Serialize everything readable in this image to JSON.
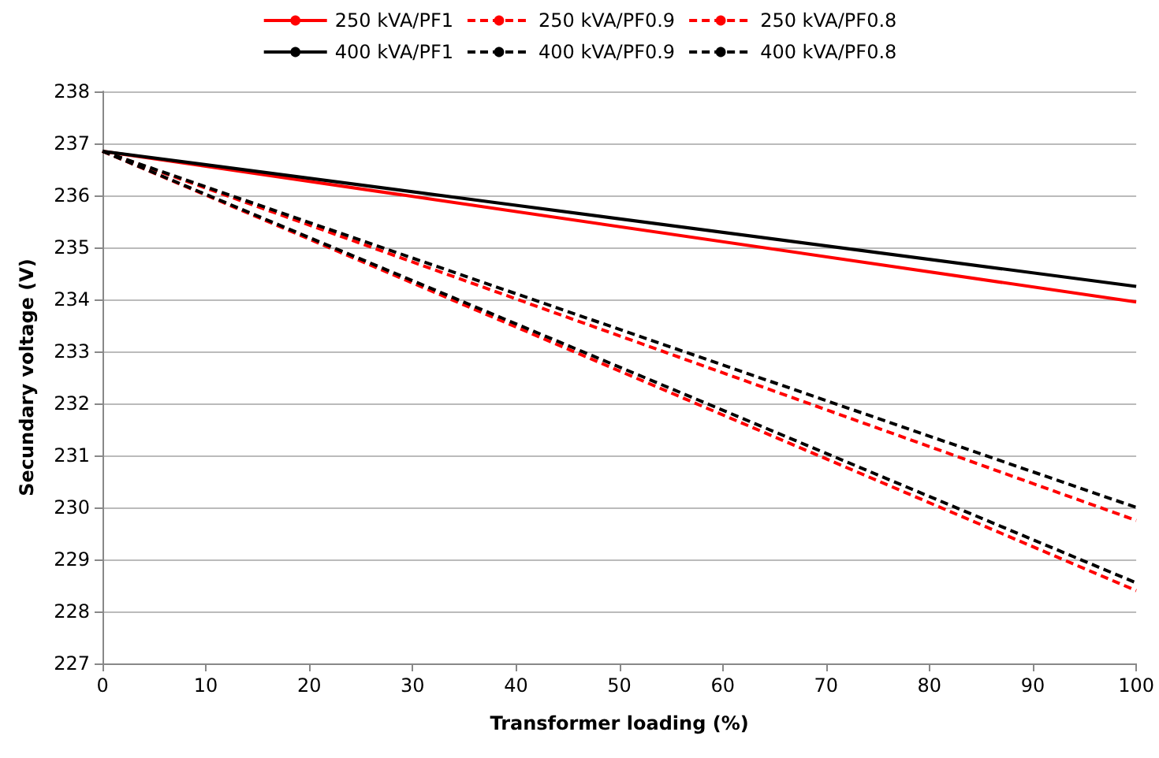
{
  "chart_data": {
    "type": "line",
    "xlabel": "Transformer loading (%)",
    "ylabel": "Secundary voltage (V)",
    "x": [
      0,
      100
    ],
    "xlim": [
      0,
      100
    ],
    "xticks": [
      0,
      10,
      20,
      30,
      40,
      50,
      60,
      70,
      80,
      90,
      100
    ],
    "ylim": [
      227,
      238
    ],
    "yticks": [
      227,
      228,
      229,
      230,
      231,
      232,
      233,
      234,
      235,
      236,
      237,
      238
    ],
    "grid": "y",
    "legend": "top",
    "marker": "none",
    "series": [
      {
        "name": "250 kVA/PF1",
        "color": "#ff0000",
        "line_style": "solid",
        "values": [
          236.85,
          233.95
        ]
      },
      {
        "name": "250 kVA/PF0.9",
        "color": "#ff0000",
        "line_style": "dashed",
        "values": [
          236.85,
          229.75
        ]
      },
      {
        "name": "250 kVA/PF0.8",
        "color": "#ff0000",
        "line_style": "dashed",
        "values": [
          236.85,
          228.4
        ]
      },
      {
        "name": "400 kVA/PF1",
        "color": "#000000",
        "line_style": "solid",
        "values": [
          236.85,
          234.25
        ]
      },
      {
        "name": "400 kVA/PF0.9",
        "color": "#000000",
        "line_style": "dashed",
        "values": [
          236.85,
          230.0
        ]
      },
      {
        "name": "400 kVA/PF0.8",
        "color": "#000000",
        "line_style": "dashed",
        "values": [
          236.85,
          228.55
        ]
      }
    ]
  }
}
